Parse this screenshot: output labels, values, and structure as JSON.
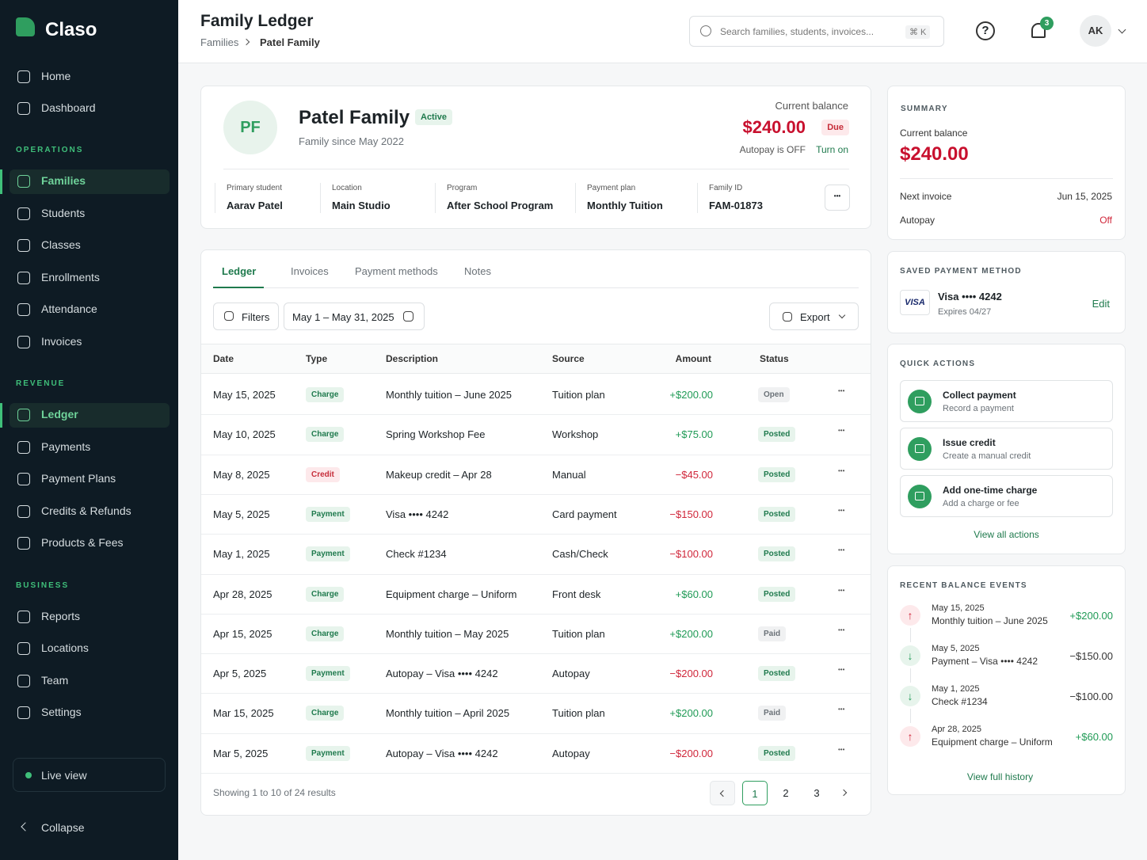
{
  "sidebar": {
    "brand": "Claso",
    "nav_top": [
      "Home",
      "Dashboard"
    ],
    "sections": [
      {
        "title": "OPERATIONS",
        "items": [
          "Families",
          "Students",
          "Classes",
          "Enrollments",
          "Attendance",
          "Invoices"
        ]
      },
      {
        "title": "REVENUE",
        "items": [
          "Ledger",
          "Payments",
          "Payment Plans",
          "Credits & Refunds",
          "Products & Fees"
        ]
      },
      {
        "title": "BUSINESS",
        "items": [
          "Reports",
          "Locations",
          "Team",
          "Settings"
        ]
      }
    ],
    "live_view": "Live view",
    "collapse": "Collapse"
  },
  "header": {
    "title": "Family Ledger",
    "breadcrumb": [
      "Families",
      "Patel Family"
    ],
    "search_placeholder": "Search families, students, invoices...",
    "search_shortcut": "⌘ K",
    "notifications": "3",
    "avatar": "AK"
  },
  "family": {
    "initials": "PF",
    "name": "Patel Family",
    "status": "Active",
    "since": "Family since May 2022",
    "balance_label": "Current balance",
    "balance": "$240.00",
    "balance_status": "Due",
    "autopay": "Autopay is OFF",
    "autopay_action": "Turn on",
    "details": [
      {
        "label": "Primary student",
        "value": "Aarav Patel"
      },
      {
        "label": "Location",
        "value": "Main Studio"
      },
      {
        "label": "Program",
        "value": "After School Program"
      },
      {
        "label": "Payment plan",
        "value": "Monthly Tuition"
      },
      {
        "label": "Family ID",
        "value": "FAM-01873"
      }
    ]
  },
  "ledger": {
    "tabs": [
      "Ledger",
      "Invoices",
      "Payment methods",
      "Notes"
    ],
    "filters": "Filters",
    "date_range": "May 1 – May 31, 2025",
    "export": "Export",
    "columns": [
      "Date",
      "Type",
      "Description",
      "Source",
      "Amount",
      "Status"
    ],
    "rows": [
      [
        "May 15, 2025",
        "Charge",
        "Monthly tuition – June 2025",
        "Tuition plan",
        "+$200.00",
        "Open"
      ],
      [
        "May 10, 2025",
        "Charge",
        "Spring Workshop Fee",
        "Workshop",
        "+$75.00",
        "Posted"
      ],
      [
        "May 8, 2025",
        "Credit",
        "Makeup credit – Apr 28",
        "Manual",
        "−$45.00",
        "Posted"
      ],
      [
        "May 5, 2025",
        "Payment",
        "Visa •••• 4242",
        "Card payment",
        "−$150.00",
        "Posted"
      ],
      [
        "May 1, 2025",
        "Payment",
        "Check #1234",
        "Cash/Check",
        "−$100.00",
        "Posted"
      ],
      [
        "Apr 28, 2025",
        "Charge",
        "Equipment charge – Uniform",
        "Front desk",
        "+$60.00",
        "Posted"
      ],
      [
        "Apr 15, 2025",
        "Charge",
        "Monthly tuition – May 2025",
        "Tuition plan",
        "+$200.00",
        "Paid"
      ],
      [
        "Apr 5, 2025",
        "Payment",
        "Autopay – Visa •••• 4242",
        "Autopay",
        "−$200.00",
        "Posted"
      ],
      [
        "Mar 15, 2025",
        "Charge",
        "Monthly tuition – April 2025",
        "Tuition plan",
        "+$200.00",
        "Paid"
      ],
      [
        "Mar 5, 2025",
        "Payment",
        "Autopay – Visa •••• 4242",
        "Autopay",
        "−$200.00",
        "Posted"
      ]
    ],
    "footer": "Showing 1 to 10 of 24 results",
    "pages": [
      "1",
      "2",
      "3"
    ]
  },
  "summary": {
    "title": "SUMMARY",
    "balance_label": "Current balance",
    "balance": "$240.00",
    "next_invoice_label": "Next invoice",
    "next_invoice": "Jun 15, 2025",
    "autopay_label": "Autopay",
    "autopay": "Off"
  },
  "payment_method": {
    "title": "SAVED PAYMENT METHOD",
    "brand": "VISA",
    "card": "Visa •••• 4242",
    "expires": "Expires 04/27",
    "action": "Edit"
  },
  "quick_actions": {
    "title": "QUICK ACTIONS",
    "items": [
      {
        "title": "Collect payment",
        "subtitle": "Record a payment"
      },
      {
        "title": "Issue credit",
        "subtitle": "Create a manual credit"
      },
      {
        "title": "Add one-time charge",
        "subtitle": "Add a charge or fee"
      }
    ],
    "link": "View all actions"
  },
  "recent_events": {
    "title": "RECENT BALANCE EVENTS",
    "items": [
      {
        "date": "May 15, 2025",
        "description": "Monthly tuition – June 2025",
        "amount": "+$200.00"
      },
      {
        "date": "May 5, 2025",
        "description": "Payment – Visa •••• 4242",
        "amount": "−$150.00"
      },
      {
        "date": "May 1, 2025",
        "description": "Check #1234",
        "amount": "−$100.00"
      },
      {
        "date": "Apr 28, 2025",
        "description": "Equipment charge – Uniform",
        "amount": "+$60.00"
      }
    ],
    "link": "View full history"
  }
}
